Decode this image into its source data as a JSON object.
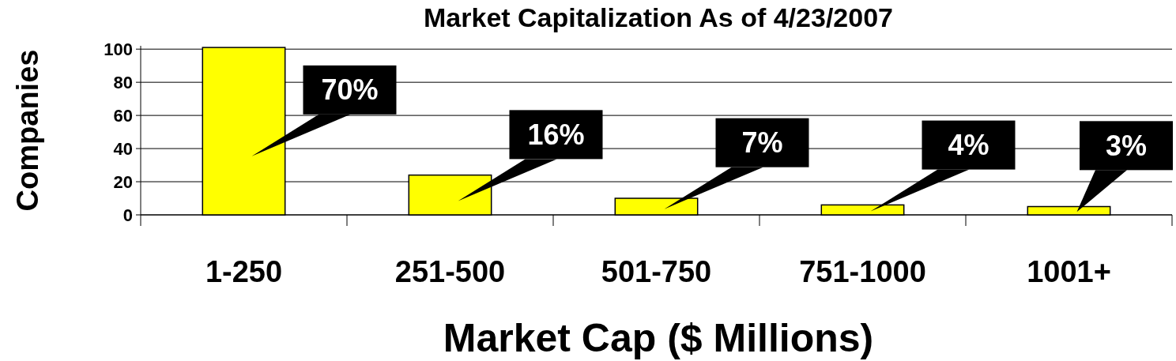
{
  "chart_data": {
    "type": "bar",
    "title": "Market Capitalization As of 4/23/2007",
    "xlabel": "Market Cap ($ Millions)",
    "ylabel": "Companies",
    "categories": [
      "1-250",
      "251-500",
      "501-750",
      "751-1000",
      "1001+"
    ],
    "values": [
      101,
      24,
      10,
      6,
      5
    ],
    "color": "#ffff00",
    "ylim": [
      0,
      102
    ],
    "yticks": [
      0,
      20,
      40,
      60,
      80,
      100
    ],
    "grid": "y",
    "annotations": [
      "70%",
      "16%",
      "7%",
      "4%",
      "3%"
    ]
  }
}
